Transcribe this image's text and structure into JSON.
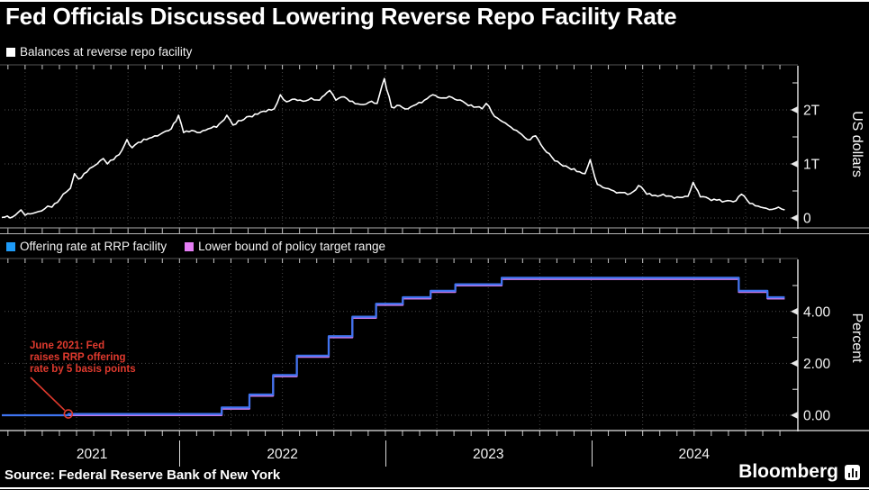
{
  "title": "Fed Officials Discussed Lowering Reverse Repo Facility Rate",
  "source": "Source: Federal Reserve Bank of New York",
  "brand": {
    "name": "Bloomberg",
    "icon": "bloomberg-terminal-icon"
  },
  "colors": {
    "background": "#000000",
    "balances_line": "#ffffff",
    "balances_swatch": "#ffffff",
    "offering_line": "#3f74f0",
    "offering_swatch": "#1e9bf7",
    "lower_bound_line": "#c678e8",
    "lower_bound_swatch": "#e57ef5",
    "annotation_red": "#e03a2e",
    "grid": "#4f4f4f",
    "axis": "#e8e8e8"
  },
  "x_axis": {
    "years": [
      "2021",
      "2022",
      "2023",
      "2024"
    ],
    "domain_start": 2021.137,
    "domain_end": 2025.0
  },
  "chart_data": [
    {
      "type": "line",
      "title": "Balances at reverse repo facility",
      "ylabel": "US dollars",
      "ylim": [
        0,
        2.8
      ],
      "yticks_major": [
        {
          "v": 2,
          "label": "2T"
        },
        {
          "v": 1,
          "label": "1T"
        },
        {
          "v": 0,
          "label": "0"
        }
      ],
      "yticks_minor": [
        0.5,
        1.5,
        2.5
      ],
      "x_unit": "decimal_year",
      "y_unit": "trillions_usd",
      "points": [
        [
          2021.137,
          0.01
        ],
        [
          2021.19,
          0.02
        ],
        [
          2021.23,
          0.15
        ],
        [
          2021.25,
          0.05
        ],
        [
          2021.3,
          0.1
        ],
        [
          2021.33,
          0.13
        ],
        [
          2021.36,
          0.22
        ],
        [
          2021.38,
          0.2
        ],
        [
          2021.42,
          0.35
        ],
        [
          2021.45,
          0.48
        ],
        [
          2021.47,
          0.55
        ],
        [
          2021.49,
          0.82
        ],
        [
          2021.51,
          0.72
        ],
        [
          2021.55,
          0.85
        ],
        [
          2021.58,
          0.95
        ],
        [
          2021.6,
          1.0
        ],
        [
          2021.63,
          1.1
        ],
        [
          2021.65,
          1.0
        ],
        [
          2021.68,
          1.08
        ],
        [
          2021.72,
          1.25
        ],
        [
          2021.745,
          1.45
        ],
        [
          2021.77,
          1.3
        ],
        [
          2021.8,
          1.4
        ],
        [
          2021.84,
          1.45
        ],
        [
          2021.88,
          1.52
        ],
        [
          2021.92,
          1.58
        ],
        [
          2021.96,
          1.65
        ],
        [
          2021.995,
          1.9
        ],
        [
          2022.02,
          1.58
        ],
        [
          2022.06,
          1.62
        ],
        [
          2022.1,
          1.58
        ],
        [
          2022.14,
          1.65
        ],
        [
          2022.18,
          1.68
        ],
        [
          2022.23,
          1.9
        ],
        [
          2022.26,
          1.72
        ],
        [
          2022.3,
          1.8
        ],
        [
          2022.34,
          1.88
        ],
        [
          2022.38,
          1.92
        ],
        [
          2022.42,
          1.97
        ],
        [
          2022.46,
          2.02
        ],
        [
          2022.49,
          2.28
        ],
        [
          2022.52,
          2.15
        ],
        [
          2022.56,
          2.2
        ],
        [
          2022.6,
          2.16
        ],
        [
          2022.64,
          2.22
        ],
        [
          2022.68,
          2.18
        ],
        [
          2022.73,
          2.36
        ],
        [
          2022.76,
          2.18
        ],
        [
          2022.8,
          2.24
        ],
        [
          2022.84,
          2.16
        ],
        [
          2022.88,
          2.1
        ],
        [
          2022.92,
          2.14
        ],
        [
          2022.96,
          2.12
        ],
        [
          2022.995,
          2.58
        ],
        [
          2023.03,
          2.05
        ],
        [
          2023.07,
          2.08
        ],
        [
          2023.11,
          2.02
        ],
        [
          2023.15,
          2.1
        ],
        [
          2023.19,
          2.18
        ],
        [
          2023.23,
          2.28
        ],
        [
          2023.27,
          2.22
        ],
        [
          2023.31,
          2.25
        ],
        [
          2023.35,
          2.18
        ],
        [
          2023.39,
          2.12
        ],
        [
          2023.43,
          2.05
        ],
        [
          2023.47,
          2.02
        ],
        [
          2023.49,
          2.12
        ],
        [
          2023.53,
          1.88
        ],
        [
          2023.57,
          1.78
        ],
        [
          2023.61,
          1.68
        ],
        [
          2023.65,
          1.58
        ],
        [
          2023.69,
          1.45
        ],
        [
          2023.73,
          1.52
        ],
        [
          2023.77,
          1.28
        ],
        [
          2023.81,
          1.12
        ],
        [
          2023.85,
          1.0
        ],
        [
          2023.89,
          0.93
        ],
        [
          2023.93,
          0.86
        ],
        [
          2023.97,
          0.82
        ],
        [
          2023.995,
          1.08
        ],
        [
          2024.03,
          0.62
        ],
        [
          2024.07,
          0.55
        ],
        [
          2024.11,
          0.5
        ],
        [
          2024.15,
          0.47
        ],
        [
          2024.19,
          0.45
        ],
        [
          2024.23,
          0.6
        ],
        [
          2024.27,
          0.44
        ],
        [
          2024.31,
          0.42
        ],
        [
          2024.35,
          0.44
        ],
        [
          2024.39,
          0.4
        ],
        [
          2024.43,
          0.38
        ],
        [
          2024.47,
          0.4
        ],
        [
          2024.495,
          0.66
        ],
        [
          2024.53,
          0.39
        ],
        [
          2024.57,
          0.36
        ],
        [
          2024.61,
          0.33
        ],
        [
          2024.65,
          0.31
        ],
        [
          2024.69,
          0.3
        ],
        [
          2024.73,
          0.44
        ],
        [
          2024.77,
          0.27
        ],
        [
          2024.81,
          0.22
        ],
        [
          2024.85,
          0.18
        ],
        [
          2024.88,
          0.16
        ],
        [
          2024.91,
          0.2
        ],
        [
          2024.94,
          0.15
        ]
      ]
    },
    {
      "type": "step-line",
      "ylabel": "Percent",
      "ylim": [
        -0.6,
        6.0
      ],
      "yticks_major": [
        {
          "v": 4,
          "label": "4.00"
        },
        {
          "v": 2,
          "label": "2.00"
        },
        {
          "v": 0,
          "label": "0.00"
        }
      ],
      "yticks_minor": [
        1,
        3,
        5
      ],
      "x_unit": "decimal_year",
      "y_unit": "percent",
      "series": [
        {
          "name": "Offering rate at RRP facility",
          "steps": [
            [
              2021.137,
              0.0
            ],
            [
              2021.46,
              0.05
            ],
            [
              2022.205,
              0.3
            ],
            [
              2022.34,
              0.8
            ],
            [
              2022.455,
              1.55
            ],
            [
              2022.57,
              2.3
            ],
            [
              2022.725,
              3.05
            ],
            [
              2022.84,
              3.8
            ],
            [
              2022.955,
              4.3
            ],
            [
              2023.085,
              4.55
            ],
            [
              2023.22,
              4.8
            ],
            [
              2023.34,
              5.05
            ],
            [
              2023.565,
              5.3
            ],
            [
              2024.717,
              4.8
            ],
            [
              2024.856,
              4.55
            ],
            [
              2024.94,
              4.55
            ]
          ]
        },
        {
          "name": "Lower bound of policy target range",
          "steps": [
            [
              2021.137,
              0.0
            ],
            [
              2022.205,
              0.25
            ],
            [
              2022.34,
              0.75
            ],
            [
              2022.455,
              1.5
            ],
            [
              2022.57,
              2.25
            ],
            [
              2022.725,
              3.0
            ],
            [
              2022.84,
              3.75
            ],
            [
              2022.955,
              4.25
            ],
            [
              2023.085,
              4.5
            ],
            [
              2023.22,
              4.75
            ],
            [
              2023.34,
              5.0
            ],
            [
              2023.565,
              5.25
            ],
            [
              2024.717,
              4.75
            ],
            [
              2024.856,
              4.5
            ],
            [
              2024.94,
              4.5
            ]
          ]
        }
      ],
      "annotation": {
        "lines": [
          "June 2021: Fed",
          "raises RRP offering",
          "rate by 5 basis points"
        ],
        "target": [
          2021.46,
          0.05
        ]
      }
    }
  ],
  "legend1": {
    "label": "Balances at reverse repo facility"
  },
  "legend2": {
    "items": [
      "Offering rate at RRP facility",
      "Lower bound of policy target range"
    ]
  }
}
